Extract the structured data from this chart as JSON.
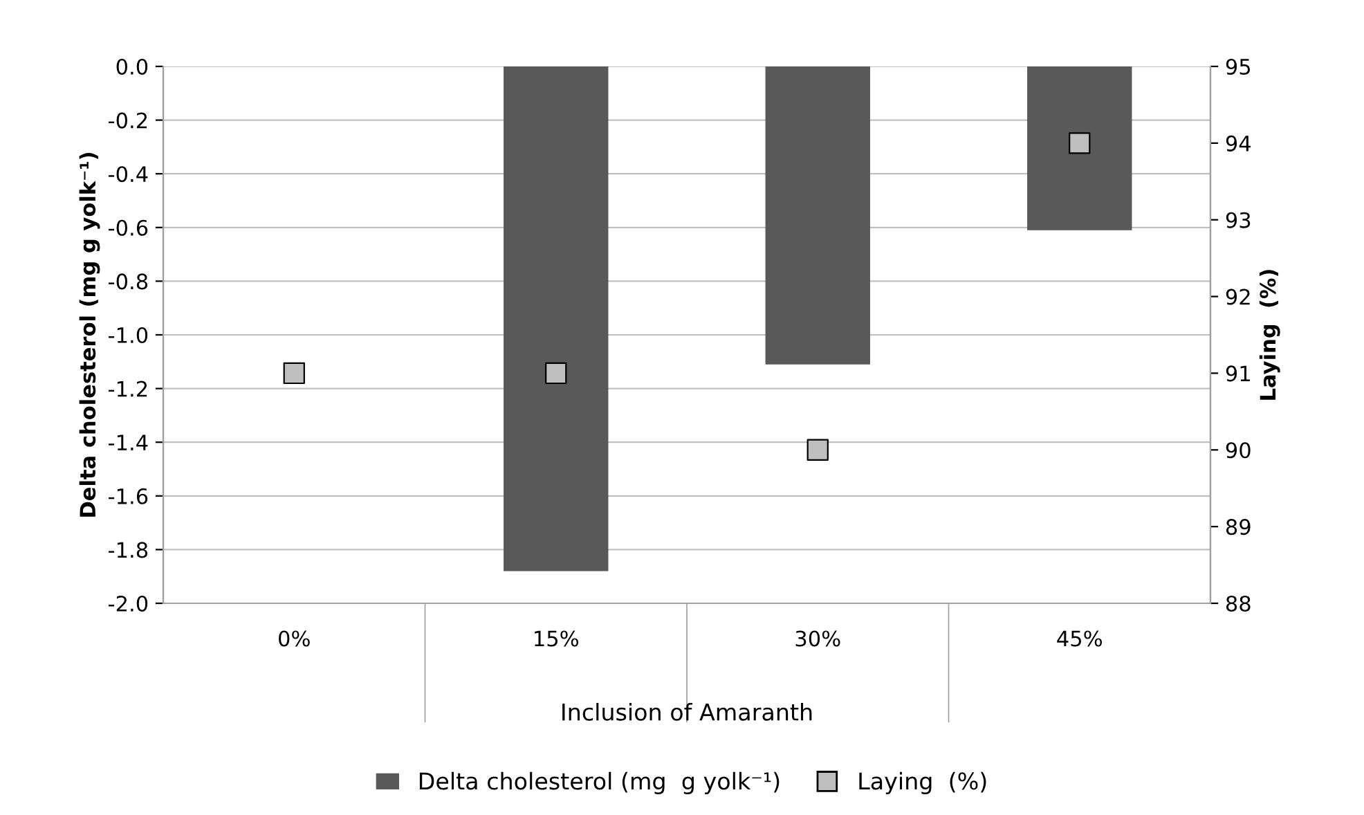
{
  "chart_data": {
    "type": "bar",
    "categories": [
      "0%",
      "15%",
      "30%",
      "45%"
    ],
    "xlabel": "Inclusion of Amaranth",
    "ylabel": "Delta cholesterol (mg g yolk⁻¹)",
    "y2label": "Laying  (%)",
    "series": [
      {
        "name": "Delta cholesterol (mg  g yolk⁻¹)",
        "color": "#595959",
        "values": [
          0,
          -1.88,
          -1.11,
          -0.61
        ]
      },
      {
        "name": "Laying  (%)",
        "type": "scatter",
        "axis": "y2",
        "color": "#bfbfbf",
        "marker": "square",
        "values": [
          91,
          91,
          90,
          94
        ]
      }
    ],
    "ylim": [
      -2.0,
      0.0
    ],
    "yticks": [
      {
        "value": 0.0,
        "label": "0.0"
      },
      -0.2,
      -0.4,
      -0.6,
      -0.8,
      {
        "value": -1.0,
        "label": "-1.0"
      },
      -1.2,
      -1.4,
      -1.6,
      -1.8,
      {
        "value": -2.0,
        "label": "-2.0"
      }
    ],
    "y2lim": [
      88,
      95
    ],
    "y2ticks": [
      88,
      89,
      90,
      91,
      92,
      93,
      94,
      95
    ],
    "grid": "y",
    "legend": "bottom"
  }
}
